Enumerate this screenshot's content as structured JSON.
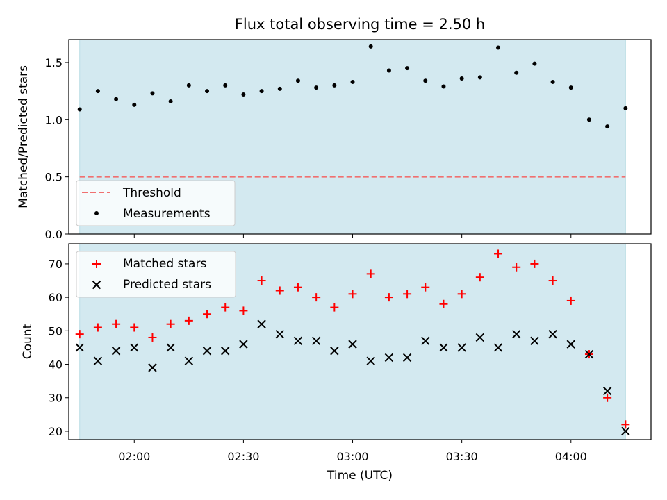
{
  "title": "Flux total observing time = 2.50 h",
  "colors": {
    "shade": "#d3e9f0",
    "threshold": "#f07070",
    "measurement": "#000000",
    "matched": "#ff0000",
    "predicted": "#000000"
  },
  "chart_data": [
    {
      "type": "scatter",
      "ylabel": "Matched/Predicted stars",
      "ylim": [
        0.0,
        1.7
      ],
      "yticks": [
        0.0,
        0.5,
        1.0,
        1.5
      ],
      "ytick_labels": [
        "0.0",
        "0.5",
        "1.0",
        "1.5"
      ],
      "shaded_interval": [
        "01:45",
        "04:15"
      ],
      "threshold": {
        "name": "Threshold",
        "value": 0.5,
        "x": [
          "01:45",
          "04:15"
        ]
      },
      "legend": {
        "location": "lower left",
        "entries": [
          "Threshold",
          "Measurements"
        ]
      },
      "series": [
        {
          "name": "Measurements",
          "marker": "dot",
          "x": [
            "01:45",
            "01:50",
            "01:55",
            "02:00",
            "02:05",
            "02:10",
            "02:15",
            "02:20",
            "02:25",
            "02:30",
            "02:35",
            "02:40",
            "02:45",
            "02:50",
            "02:55",
            "03:00",
            "03:05",
            "03:10",
            "03:15",
            "03:20",
            "03:25",
            "03:30",
            "03:35",
            "03:40",
            "03:45",
            "03:50",
            "03:55",
            "04:00",
            "04:05",
            "04:10",
            "04:15"
          ],
          "values": [
            1.09,
            1.25,
            1.18,
            1.13,
            1.23,
            1.16,
            1.3,
            1.25,
            1.3,
            1.22,
            1.25,
            1.27,
            1.34,
            1.28,
            1.3,
            1.33,
            1.64,
            1.43,
            1.45,
            1.34,
            1.29,
            1.36,
            1.37,
            1.63,
            1.41,
            1.49,
            1.33,
            1.28,
            1.0,
            0.94,
            1.1
          ]
        }
      ]
    },
    {
      "type": "scatter",
      "xlabel": "Time (UTC)",
      "ylabel": "Count",
      "ylim": [
        17.5,
        76
      ],
      "xlim": [
        "01:42",
        "04:22"
      ],
      "yticks": [
        20,
        30,
        40,
        50,
        60,
        70
      ],
      "ytick_labels": [
        "20",
        "30",
        "40",
        "50",
        "60",
        "70"
      ],
      "xticks": [
        "02:00",
        "02:30",
        "03:00",
        "03:30",
        "04:00"
      ],
      "xtick_labels": [
        "02:00",
        "02:30",
        "03:00",
        "03:30",
        "04:00"
      ],
      "shaded_interval": [
        "01:45",
        "04:15"
      ],
      "legend": {
        "location": "upper left",
        "entries": [
          "Matched stars",
          "Predicted stars"
        ]
      },
      "series": [
        {
          "name": "Matched stars",
          "marker": "plus",
          "x": [
            "01:45",
            "01:50",
            "01:55",
            "02:00",
            "02:05",
            "02:10",
            "02:15",
            "02:20",
            "02:25",
            "02:30",
            "02:35",
            "02:40",
            "02:45",
            "02:50",
            "02:55",
            "03:00",
            "03:05",
            "03:10",
            "03:15",
            "03:20",
            "03:25",
            "03:30",
            "03:35",
            "03:40",
            "03:45",
            "03:50",
            "03:55",
            "04:00",
            "04:05",
            "04:10",
            "04:15"
          ],
          "values": [
            49,
            51,
            52,
            51,
            48,
            52,
            53,
            55,
            57,
            56,
            65,
            62,
            63,
            60,
            57,
            61,
            67,
            60,
            61,
            63,
            58,
            61,
            66,
            73,
            69,
            70,
            65,
            59,
            43,
            30,
            22
          ]
        },
        {
          "name": "Predicted stars",
          "marker": "x",
          "x": [
            "01:45",
            "01:50",
            "01:55",
            "02:00",
            "02:05",
            "02:10",
            "02:15",
            "02:20",
            "02:25",
            "02:30",
            "02:35",
            "02:40",
            "02:45",
            "02:50",
            "02:55",
            "03:00",
            "03:05",
            "03:10",
            "03:15",
            "03:20",
            "03:25",
            "03:30",
            "03:35",
            "03:40",
            "03:45",
            "03:50",
            "03:55",
            "04:00",
            "04:05",
            "04:10",
            "04:15"
          ],
          "values": [
            45,
            41,
            44,
            45,
            39,
            45,
            41,
            44,
            44,
            46,
            52,
            49,
            47,
            47,
            44,
            46,
            41,
            42,
            42,
            47,
            45,
            45,
            48,
            45,
            49,
            47,
            49,
            46,
            43,
            32,
            20
          ]
        }
      ]
    }
  ]
}
